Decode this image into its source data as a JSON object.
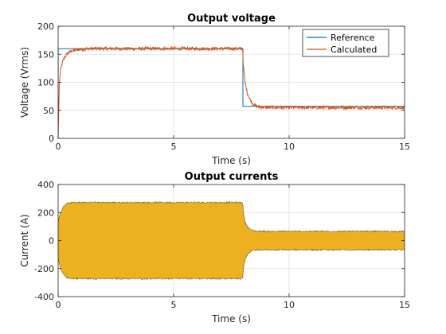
{
  "colors": {
    "reference": "#0072BD",
    "calculated": "#D95319",
    "current": "#EDB120",
    "grid": "#dfdfdf",
    "axis": "#262626"
  },
  "chart_data": [
    {
      "type": "line",
      "title": "Output voltage",
      "xlabel": "Time (s)",
      "ylabel": "Voltage (Vrms)",
      "xlim": [
        0,
        15
      ],
      "ylim": [
        0,
        200
      ],
      "xticks": [
        0,
        5,
        10,
        15
      ],
      "yticks": [
        0,
        50,
        100,
        150,
        200
      ],
      "grid": true,
      "legend": {
        "placement": "top-right",
        "entries": [
          "Reference",
          "Calculated"
        ]
      },
      "series": [
        {
          "name": "Reference",
          "x": [
            0,
            0.001,
            8.0,
            8.0,
            15
          ],
          "y": [
            0,
            160,
            160,
            57,
            57
          ]
        },
        {
          "name": "Calculated",
          "x": [
            0,
            0.05,
            0.1,
            0.2,
            0.3,
            0.4,
            0.5,
            0.6,
            0.8,
            1.0,
            1.5,
            3,
            5,
            7,
            7.99,
            8.02,
            8.1,
            8.2,
            8.3,
            8.4,
            8.6,
            9,
            10,
            12,
            15
          ],
          "y": [
            0,
            95,
            120,
            138,
            146,
            151,
            154,
            156,
            158,
            159,
            160,
            160,
            160,
            160,
            160,
            130,
            98,
            80,
            70,
            63,
            57,
            55,
            55,
            55,
            55
          ],
          "noise": 3
        }
      ]
    },
    {
      "type": "area",
      "title": "Output currents",
      "xlabel": "Time (s)",
      "ylabel": "Current (A)",
      "xlim": [
        0,
        15
      ],
      "ylim": [
        -400,
        400
      ],
      "xticks": [
        0,
        5,
        10,
        15
      ],
      "yticks": [
        -400,
        -200,
        0,
        200,
        400
      ],
      "grid": true,
      "series": [
        {
          "x": [
            0,
            0.1,
            0.2,
            0.3,
            0.4,
            0.5,
            0.7,
            1,
            2,
            5,
            7.99,
            8.02,
            8.1,
            8.2,
            8.3,
            8.4,
            8.6,
            9,
            10,
            12,
            15
          ],
          "upper": [
            130,
            200,
            235,
            255,
            265,
            270,
            272,
            272,
            272,
            272,
            272,
            200,
            130,
            100,
            82,
            73,
            68,
            66,
            66,
            66,
            66
          ],
          "lower": [
            -130,
            -200,
            -235,
            -255,
            -265,
            -270,
            -272,
            -272,
            -272,
            -272,
            -272,
            -200,
            -130,
            -100,
            -82,
            -73,
            -68,
            -66,
            -66,
            -66,
            -66
          ],
          "noise": 6
        }
      ]
    }
  ]
}
